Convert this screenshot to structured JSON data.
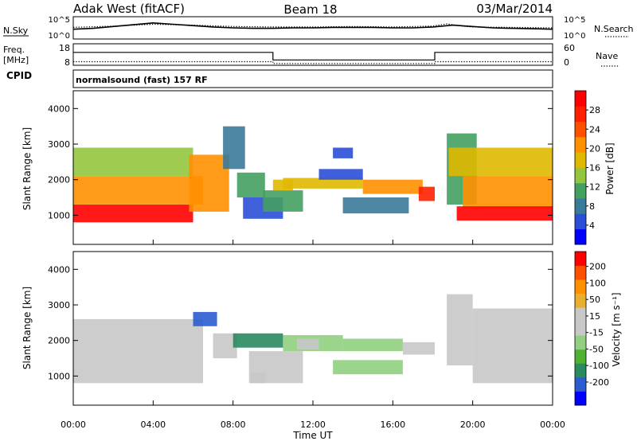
{
  "header": {
    "station": "Adak West (fitACF)",
    "beam": "Beam 18",
    "date": "03/Mar/2014"
  },
  "colors": {
    "power_scale": [
      "#0000ff",
      "#2a4fd6",
      "#3a7a9a",
      "#44a060",
      "#92c63e",
      "#e0b800",
      "#ff9000",
      "#ff5000",
      "#ff2000",
      "#ff0000"
    ],
    "velocity_scale": [
      "#0000ff",
      "#2b5cd0",
      "#2a8a60",
      "#50b030",
      "#90d080",
      "#c8c8c8",
      "#c8c8c8",
      "#e8b030",
      "#ff9000",
      "#ff5000",
      "#ff0000"
    ],
    "line": "#000000"
  },
  "chart_data": [
    {
      "type": "line",
      "panel": "N.Sky / N.Search",
      "left_label": "N.Sky",
      "right_label": "N.Search",
      "left_ticks": [
        "10^5",
        "10^0"
      ],
      "right_ticks": [
        "10^5",
        "10^0"
      ],
      "log_scale": true,
      "series": [
        {
          "name": "N.Sky",
          "style": "solid",
          "x": [
            0,
            1,
            2,
            3,
            4,
            5,
            6,
            7,
            8,
            9,
            10,
            11,
            12,
            13,
            14,
            15,
            16,
            17,
            18,
            19,
            20,
            21,
            22,
            23,
            24
          ],
          "y": [
            2.2,
            2.4,
            2.8,
            3.2,
            3.6,
            3.3,
            3.0,
            2.7,
            2.5,
            2.4,
            2.4,
            2.5,
            2.5,
            2.6,
            2.6,
            2.6,
            2.5,
            2.5,
            2.7,
            3.1,
            2.8,
            2.5,
            2.4,
            2.3,
            2.2
          ]
        },
        {
          "name": "N.Search",
          "style": "dotted",
          "x": [
            0,
            2,
            4,
            6,
            8,
            10,
            12,
            14,
            16,
            18,
            18.7,
            19.5,
            20,
            22,
            24
          ],
          "y": [
            2.6,
            2.9,
            3.3,
            3.1,
            2.8,
            2.7,
            2.7,
            2.8,
            2.7,
            2.9,
            3.4,
            2.9,
            2.7,
            2.6,
            2.5
          ]
        }
      ]
    },
    {
      "type": "line",
      "panel": "Freq. / Nave",
      "left_label_1": "Freq.",
      "left_label_2": "[MHz]",
      "right_label": "Nave",
      "left_ticks": [
        "18",
        "8"
      ],
      "right_ticks": [
        "60",
        "0"
      ],
      "series": [
        {
          "name": "Freq.",
          "style": "solid",
          "x": [
            0,
            10,
            10,
            18.1,
            18.1,
            24
          ],
          "y": [
            14,
            14,
            10.5,
            10.5,
            14,
            14
          ]
        },
        {
          "name": "Nave",
          "style": "dotted",
          "x": [
            0,
            10,
            10,
            18.1,
            18.1,
            24
          ],
          "y": [
            10,
            10,
            5,
            5,
            10,
            10
          ]
        }
      ]
    },
    {
      "type": "heatmap",
      "panel": "Power",
      "cpid_label": "CPID",
      "cpid_text": "normalsound (fast) 157 RF",
      "ylabel": "Slant Range [km]",
      "yticks": [
        "1000",
        "2000",
        "3000",
        "4000"
      ],
      "yrange": [
        180,
        4500
      ],
      "colorbar_label": "Power [dB]",
      "colorbar_ticks": [
        "4",
        "8",
        "12",
        "16",
        "20",
        "24",
        "28"
      ],
      "colorbar_range": [
        0,
        32
      ],
      "regions": [
        {
          "t0": 0.0,
          "t1": 6.0,
          "r0": 800,
          "r1": 1300,
          "value": 30
        },
        {
          "t0": 0.0,
          "t1": 6.5,
          "r0": 1300,
          "r1": 2100,
          "value": 22
        },
        {
          "t0": 0.0,
          "t1": 6.0,
          "r0": 2100,
          "r1": 2900,
          "value": 14
        },
        {
          "t0": 5.8,
          "t1": 7.8,
          "r0": 1100,
          "r1": 2700,
          "value": 20
        },
        {
          "t0": 7.5,
          "t1": 8.6,
          "r0": 2300,
          "r1": 3500,
          "value": 8
        },
        {
          "t0": 8.2,
          "t1": 9.6,
          "r0": 1500,
          "r1": 2200,
          "value": 12
        },
        {
          "t0": 8.5,
          "t1": 10.5,
          "r0": 900,
          "r1": 1500,
          "value": 6
        },
        {
          "t0": 9.5,
          "t1": 11.5,
          "r0": 1100,
          "r1": 1700,
          "value": 12
        },
        {
          "t0": 10.0,
          "t1": 11.0,
          "r0": 1700,
          "r1": 2000,
          "value": 16
        },
        {
          "t0": 10.5,
          "t1": 14.5,
          "r0": 1750,
          "r1": 2050,
          "value": 18
        },
        {
          "t0": 12.3,
          "t1": 14.5,
          "r0": 2000,
          "r1": 2300,
          "value": 6
        },
        {
          "t0": 13.5,
          "t1": 16.8,
          "r0": 1050,
          "r1": 1500,
          "value": 8
        },
        {
          "t0": 14.5,
          "t1": 17.5,
          "r0": 1600,
          "r1": 2000,
          "value": 22
        },
        {
          "t0": 17.3,
          "t1": 18.1,
          "r0": 1400,
          "r1": 1800,
          "value": 28
        },
        {
          "t0": 13.0,
          "t1": 14.0,
          "r0": 2600,
          "r1": 2900,
          "value": 6
        },
        {
          "t0": 18.7,
          "t1": 20.2,
          "r0": 1300,
          "r1": 3300,
          "value": 12
        },
        {
          "t0": 18.8,
          "t1": 24.0,
          "r0": 2100,
          "r1": 2900,
          "value": 16
        },
        {
          "t0": 19.5,
          "t1": 24.0,
          "r0": 1200,
          "r1": 2100,
          "value": 22
        },
        {
          "t0": 19.2,
          "t1": 24.0,
          "r0": 850,
          "r1": 1250,
          "value": 30
        }
      ]
    },
    {
      "type": "heatmap",
      "panel": "Velocity",
      "ylabel": "Slant Range [km]",
      "yticks": [
        "1000",
        "2000",
        "3000",
        "4000"
      ],
      "yrange": [
        180,
        4500
      ],
      "colorbar_label": "Velocity [m s⁻¹]",
      "colorbar_ticks": [
        "-200",
        "-100",
        "-50",
        "-15",
        "15",
        "50",
        "100",
        "200"
      ],
      "colorbar_range": [
        -250,
        250
      ],
      "xlabel": "Time UT",
      "xticks": [
        "00:00",
        "04:00",
        "08:00",
        "12:00",
        "16:00",
        "20:00",
        "00:00"
      ],
      "xrange": [
        0,
        24
      ],
      "regions": [
        {
          "t0": 0.0,
          "t1": 6.5,
          "r0": 800,
          "r1": 2600,
          "value": 0
        },
        {
          "t0": 6.0,
          "t1": 7.2,
          "r0": 2400,
          "r1": 2800,
          "value": -180
        },
        {
          "t0": 7.0,
          "t1": 8.2,
          "r0": 1500,
          "r1": 2200,
          "value": 0
        },
        {
          "t0": 8.0,
          "t1": 10.5,
          "r0": 1800,
          "r1": 2200,
          "value": -120
        },
        {
          "t0": 8.8,
          "t1": 11.5,
          "r0": 800,
          "r1": 1700,
          "value": 0
        },
        {
          "t0": 8.9,
          "t1": 9.6,
          "r0": 800,
          "r1": 1100,
          "value": 40
        },
        {
          "t0": 10.5,
          "t1": 13.5,
          "r0": 1700,
          "r1": 2150,
          "value": -60
        },
        {
          "t0": 11.2,
          "t1": 12.3,
          "r0": 1750,
          "r1": 2050,
          "value": 40
        },
        {
          "t0": 13.5,
          "t1": 16.5,
          "r0": 1700,
          "r1": 2050,
          "value": -40
        },
        {
          "t0": 13.0,
          "t1": 16.5,
          "r0": 1050,
          "r1": 1450,
          "value": -60
        },
        {
          "t0": 16.5,
          "t1": 18.1,
          "r0": 1600,
          "r1": 1950,
          "value": 0
        },
        {
          "t0": 18.7,
          "t1": 20.0,
          "r0": 1300,
          "r1": 3300,
          "value": 40
        },
        {
          "t0": 20.0,
          "t1": 24.0,
          "r0": 800,
          "r1": 2900,
          "value": 0
        }
      ]
    }
  ]
}
